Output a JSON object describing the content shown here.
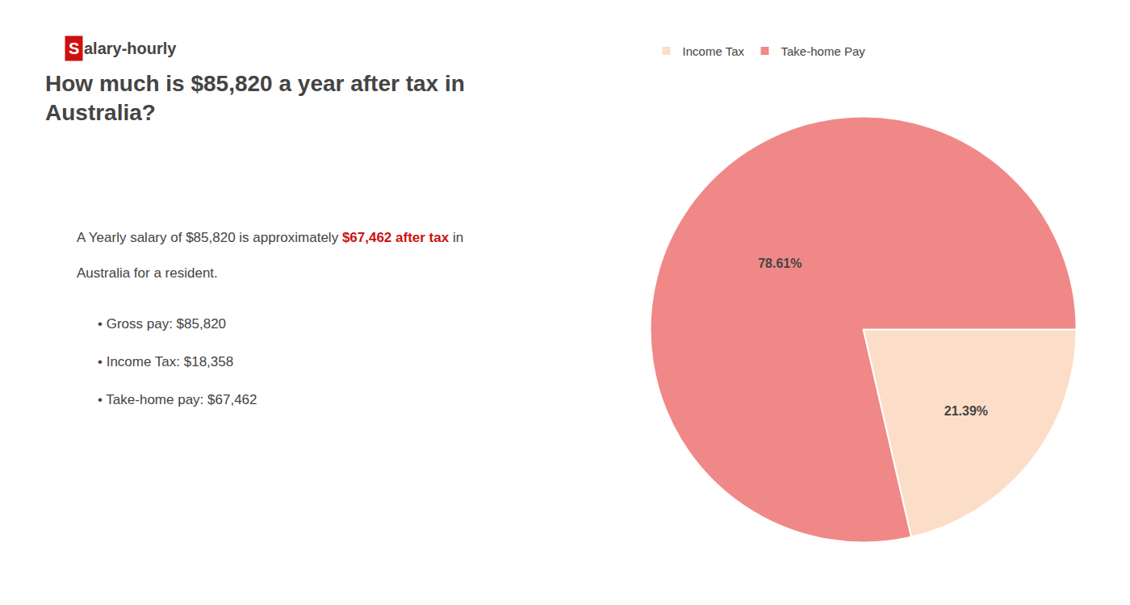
{
  "chart_data": {
    "type": "pie",
    "title": [
      "How much is $85,820 a year after tax in",
      "Australia?"
    ],
    "annotations": [
      [
        {
          "text": "S",
          "color": "#cc1111"
        },
        {
          "text": "alary-hourly"
        }
      ],
      [
        {
          "text": "A Yearly salary of $85,820 is approximately "
        },
        {
          "text": "$67,462 after tax",
          "color": "#cc1111"
        },
        {
          "text": " in"
        }
      ],
      [
        {
          "text": "Australia for a resident."
        }
      ],
      [
        {
          "text": "• Gross pay: $85,820"
        }
      ],
      [
        {
          "text": "• Income Tax: $18,358"
        }
      ],
      [
        {
          "text": "• Take-home pay: $67,462"
        }
      ]
    ],
    "categories": [
      "Income Tax",
      "Take-home Pay"
    ],
    "values": [
      21.39,
      78.61
    ],
    "value_labels": [
      "21.39%",
      "78.61%"
    ],
    "colors": [
      "#fcdec8",
      "#f08888"
    ],
    "data_labels": true,
    "legend": "upper left"
  }
}
